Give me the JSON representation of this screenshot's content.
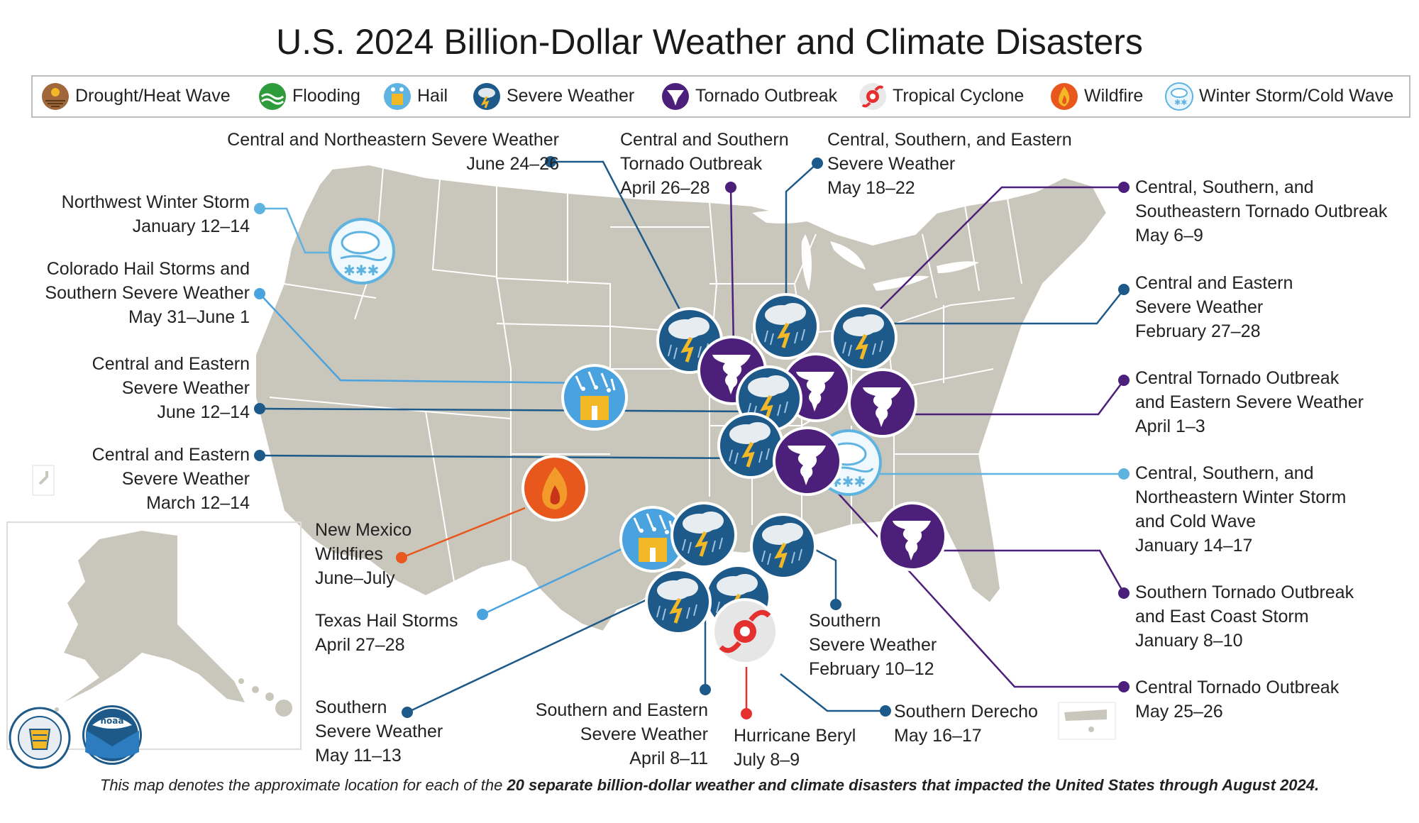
{
  "title": "U.S. 2024 Billion-Dollar Weather and Climate Disasters",
  "legend": [
    {
      "label": "Drought/Heat Wave",
      "icon": "drought-icon",
      "color": "#a0673a"
    },
    {
      "label": "Flooding",
      "icon": "flood-icon",
      "color": "#2e9c3a"
    },
    {
      "label": "Hail",
      "icon": "hail-icon",
      "color": "#f2b826"
    },
    {
      "label": "Severe Weather",
      "icon": "severe-weather-icon",
      "color": "#1d5a8a"
    },
    {
      "label": "Tornado Outbreak",
      "icon": "tornado-icon",
      "color": "#4b1f7a"
    },
    {
      "label": "Tropical Cyclone",
      "icon": "tropical-cyclone-icon",
      "color": "#e53030"
    },
    {
      "label": "Wildfire",
      "icon": "wildfire-icon",
      "color": "#e8571c"
    },
    {
      "label": "Winter Storm/Cold Wave",
      "icon": "winter-storm-icon",
      "color": "#5fb3e0"
    }
  ],
  "events": [
    {
      "name": "Central and Northeastern Severe Weather",
      "dates": "June 24–26",
      "type": "Severe Weather"
    },
    {
      "name_lines": [
        "Central and Southern",
        "Tornado Outbreak"
      ],
      "dates": "April 26–28",
      "type": "Tornado Outbreak"
    },
    {
      "name_lines": [
        "Central, Southern, and Eastern",
        "Severe Weather"
      ],
      "dates": "May 18–22",
      "type": "Severe Weather"
    },
    {
      "name_lines": [
        "Central, Southern, and",
        "Southeastern Tornado Outbreak"
      ],
      "dates": "May 6–9",
      "type": "Tornado Outbreak"
    },
    {
      "name_lines": [
        "Central and Eastern",
        "Severe Weather"
      ],
      "dates": "February 27–28",
      "type": "Severe Weather"
    },
    {
      "name_lines": [
        "Central Tornado Outbreak",
        "and Eastern Severe Weather"
      ],
      "dates": "April 1–3",
      "type": "Tornado Outbreak"
    },
    {
      "name_lines": [
        "Central, Southern, and",
        "Northeastern Winter Storm",
        "and Cold Wave"
      ],
      "dates": "January 14–17",
      "type": "Winter Storm/Cold Wave"
    },
    {
      "name_lines": [
        "Southern Tornado Outbreak",
        "and East Coast Storm"
      ],
      "dates": "January 8–10",
      "type": "Tornado Outbreak"
    },
    {
      "name_lines": [
        "Central Tornado Outbreak"
      ],
      "dates": "May 25–26",
      "type": "Tornado Outbreak"
    },
    {
      "name_lines": [
        "Southern Derecho"
      ],
      "dates": "May 16–17",
      "type": "Severe Weather"
    },
    {
      "name_lines": [
        "Hurricane Beryl"
      ],
      "dates": "July 8–9",
      "type": "Tropical Cyclone"
    },
    {
      "name_lines": [
        "Southern and Eastern",
        "Severe Weather"
      ],
      "dates": "April 8–11",
      "type": "Severe Weather"
    },
    {
      "name_lines": [
        "Southern",
        "Severe Weather"
      ],
      "dates": "May 11–13",
      "type": "Severe Weather"
    },
    {
      "name_lines": [
        "Texas Hail Storms"
      ],
      "dates": "April 27–28",
      "type": "Hail"
    },
    {
      "name_lines": [
        "New Mexico",
        "Wildfires"
      ],
      "dates": "June–July",
      "type": "Wildfire"
    },
    {
      "name_lines": [
        "Southern",
        "Severe Weather"
      ],
      "dates": "February 10–12",
      "type": "Severe Weather"
    },
    {
      "name_lines": [
        "Central and Eastern",
        "Severe Weather"
      ],
      "dates": "March 12–14",
      "type": "Severe Weather"
    },
    {
      "name_lines": [
        "Central and Eastern",
        "Severe Weather"
      ],
      "dates": "June 12–14",
      "type": "Severe Weather"
    },
    {
      "name_lines": [
        "Colorado Hail Storms and",
        "Southern Severe Weather"
      ],
      "dates": "May 31–June 1",
      "type": "Hail"
    },
    {
      "name_lines": [
        "Northwest Winter Storm"
      ],
      "dates": "January 12–14",
      "type": "Winter Storm/Cold Wave"
    }
  ],
  "footnote": {
    "prefix": "This map denotes the approximate location for each of the ",
    "bold": "20 separate billion-dollar weather and climate disasters that impacted the United States through August 2024."
  },
  "logos": [
    {
      "name": "doc-seal",
      "text": "DEPARTMENT OF COMMERCE"
    },
    {
      "name": "noaa-logo",
      "text": "NOAA"
    }
  ]
}
